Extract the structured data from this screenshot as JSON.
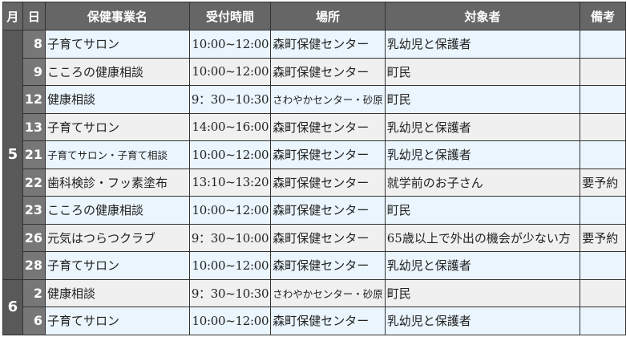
{
  "headers": {
    "month": "月",
    "day": "日",
    "name": "保健事業名",
    "time": "受付時間",
    "place": "場所",
    "target": "対象者",
    "note": "備考"
  },
  "months": [
    {
      "month": "5",
      "rows": [
        {
          "day": "8",
          "name": "子育てサロン",
          "time": "10:00~12:00",
          "place": "森町保健センター",
          "target": "乳幼児と保護者",
          "note": ""
        },
        {
          "day": "9",
          "name": "こころの健康相談",
          "time": "10:00~12:00",
          "place": "森町保健センター",
          "target": "町民",
          "note": ""
        },
        {
          "day": "12",
          "name": "健康相談",
          "time": "9：30~10:30",
          "place": "さわやかセンター・砂原",
          "target": "町民",
          "note": ""
        },
        {
          "day": "13",
          "name": "子育てサロン",
          "time": "14:00~16:00",
          "place": "森町保健センター",
          "target": "乳幼児と保護者",
          "note": ""
        },
        {
          "day": "21",
          "name": "子育てサロン・子育て相談",
          "time": "10:00~12:00",
          "place": "森町保健センター",
          "target": "乳幼児と保護者",
          "note": ""
        },
        {
          "day": "22",
          "name": "歯科検診・フッ素塗布",
          "time": "13:10~13:20",
          "place": "森町保健センター",
          "target": "就学前のお子さん",
          "note": "要予約"
        },
        {
          "day": "23",
          "name": "こころの健康相談",
          "time": "10:00~12:00",
          "place": "森町保健センター",
          "target": "町民",
          "note": ""
        },
        {
          "day": "26",
          "name": "元気はつらつクラブ",
          "time": "9：30~10:00",
          "place": "森町保健センター",
          "target": "65歳以上で外出の機会が少ない方",
          "note": "要予約"
        },
        {
          "day": "28",
          "name": "子育てサロン",
          "time": "10:00~12:00",
          "place": "森町保健センター",
          "target": "乳幼児と保護者",
          "note": ""
        }
      ]
    },
    {
      "month": "6",
      "rows": [
        {
          "day": "2",
          "name": "健康相談",
          "time": "9：30~10:30",
          "place": "さわやかセンター・砂原",
          "target": "町民",
          "note": ""
        },
        {
          "day": "6",
          "name": "子育てサロン",
          "time": "10:00~12:00",
          "place": "森町保健センター",
          "target": "乳幼児と保護者",
          "note": ""
        }
      ]
    }
  ],
  "colors": {
    "header": "#666666",
    "month": "#595959",
    "day": "#777777",
    "row_blue": "#eaf5fd",
    "row_gray": "#f0f0f0"
  }
}
